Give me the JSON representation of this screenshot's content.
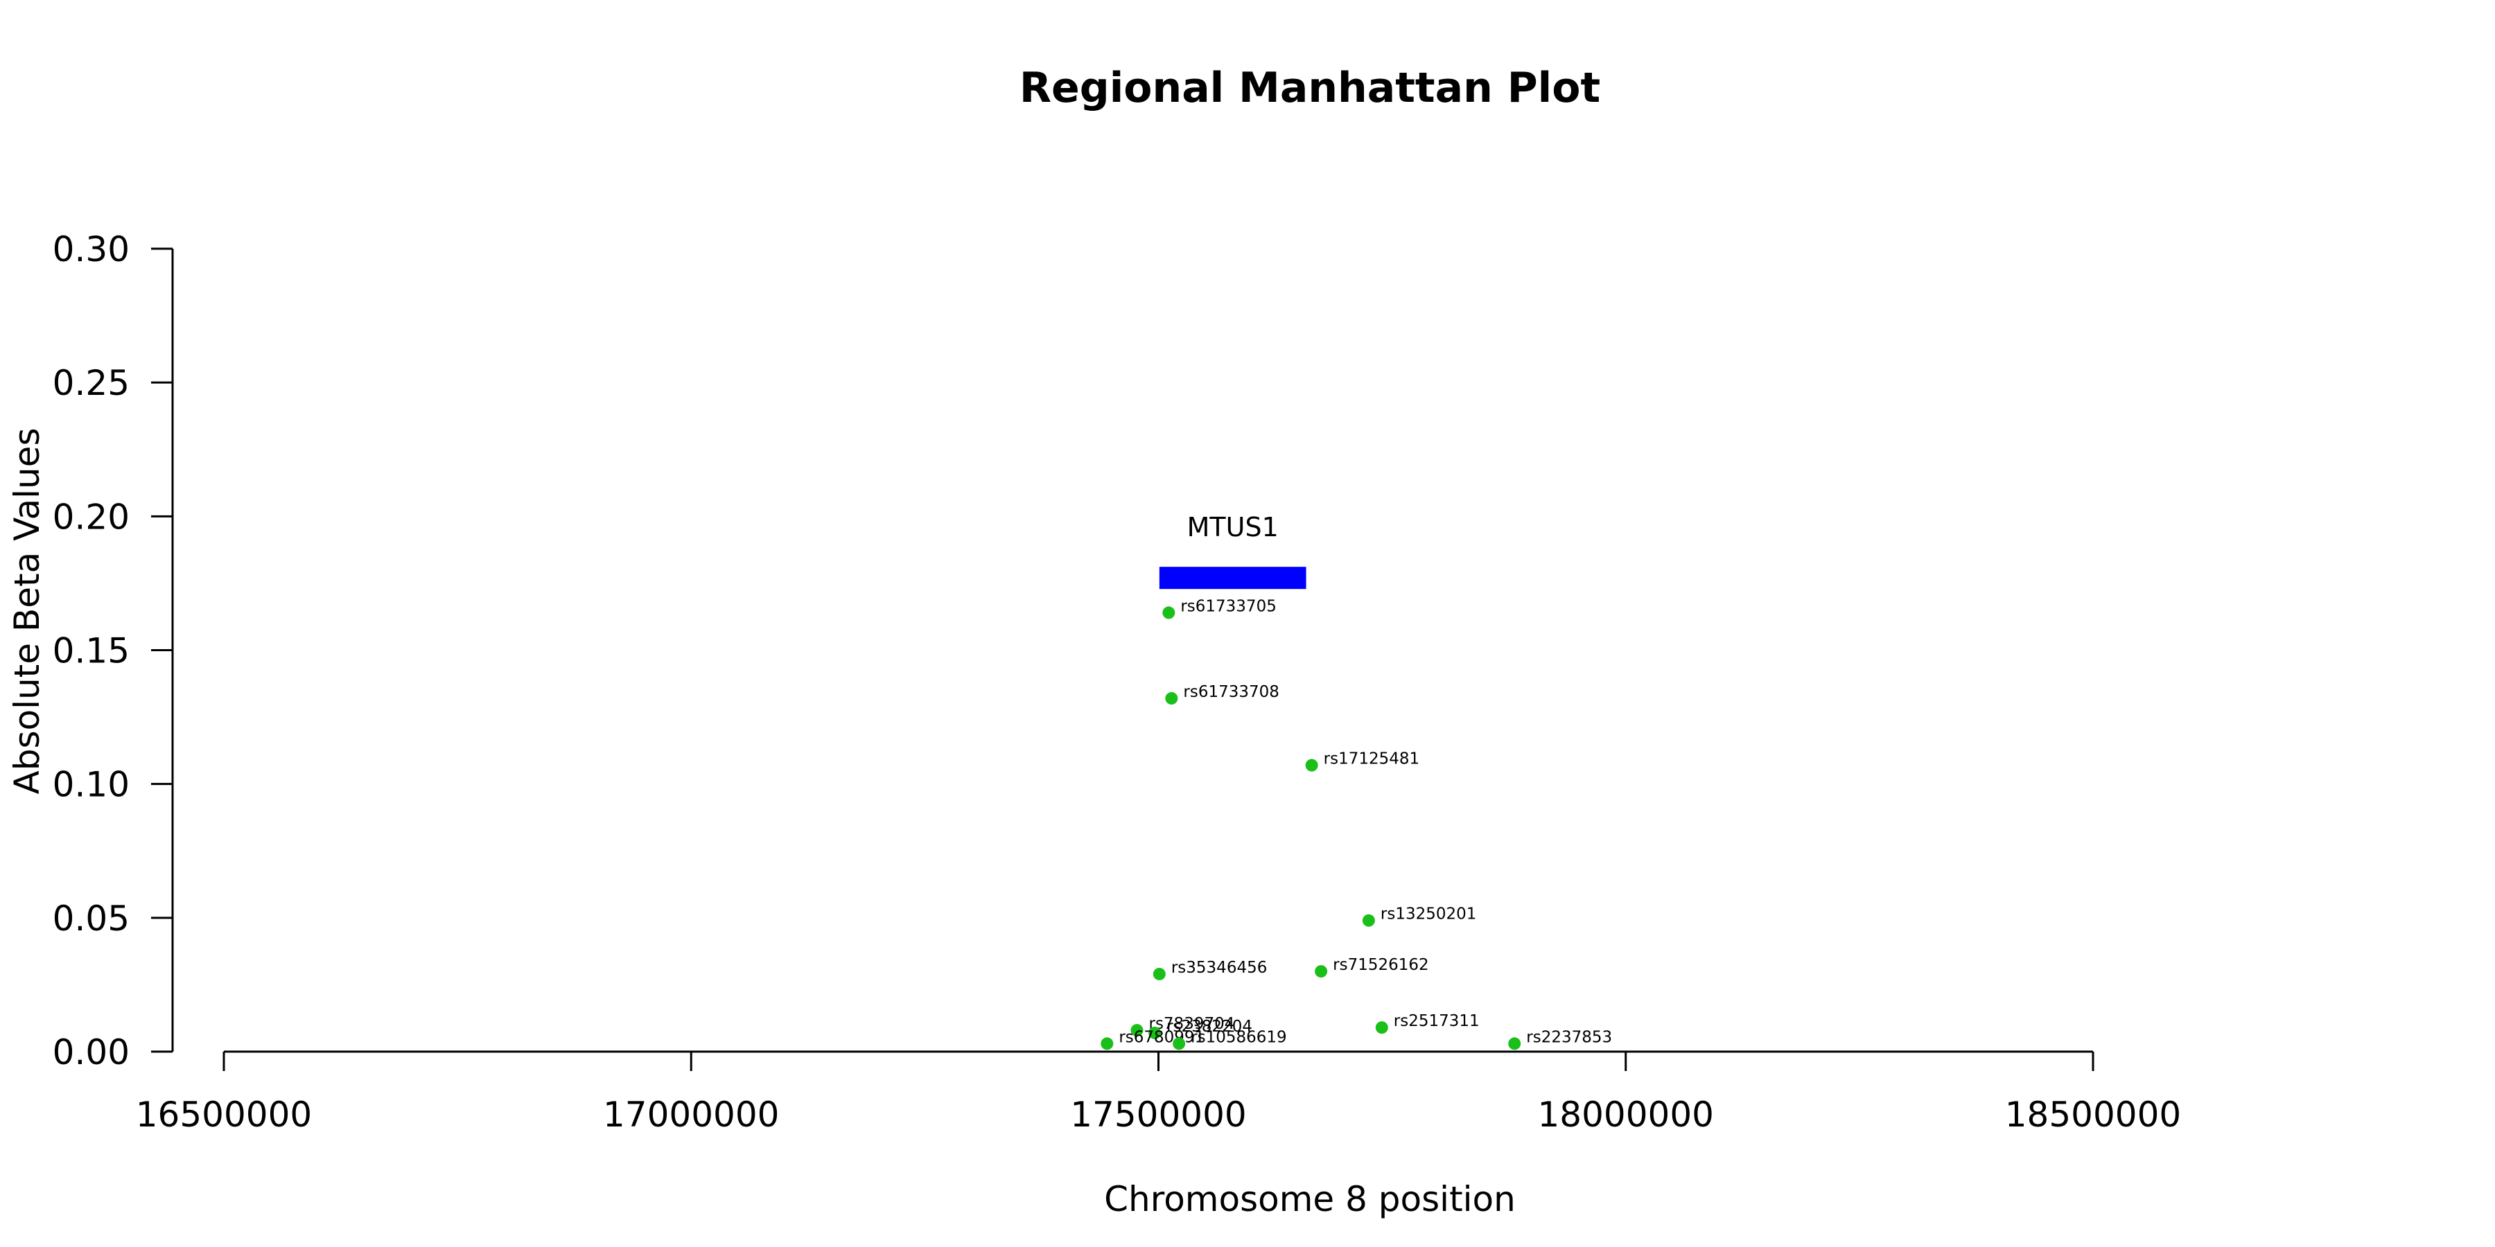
{
  "chart_data": {
    "type": "scatter",
    "title": "Regional Manhattan Plot",
    "xlabel": "Chromosome 8 position",
    "ylabel": "Absolute Beta Values",
    "xlim": [
      16500000,
      18500000
    ],
    "ylim": [
      0,
      0.3
    ],
    "x_ticks": [
      "16500000",
      "17000000",
      "17500000",
      "18000000",
      "18500000"
    ],
    "y_ticks": [
      "0.00",
      "0.05",
      "0.10",
      "0.15",
      "0.20",
      "0.25",
      "0.30"
    ],
    "point_color": "#1ABF1A",
    "grid": false,
    "gene": {
      "name": "MTUS1",
      "start": 17501000,
      "end": 17658000,
      "y": 0.177,
      "color": "#0000FF"
    },
    "points": [
      {
        "label": "rs61733705",
        "x": 17511000,
        "y": 0.164
      },
      {
        "label": "rs61733708",
        "x": 17514000,
        "y": 0.132
      },
      {
        "label": "rs17125481",
        "x": 17664000,
        "y": 0.107
      },
      {
        "label": "rs13250201",
        "x": 17725000,
        "y": 0.049
      },
      {
        "label": "rs35346456",
        "x": 17501000,
        "y": 0.029
      },
      {
        "label": "rs71526162",
        "x": 17674000,
        "y": 0.03
      },
      {
        "label": "rs2517311",
        "x": 17739000,
        "y": 0.009
      },
      {
        "label": "rs2237853",
        "x": 17881000,
        "y": 0.003
      },
      {
        "label": "rs7839704",
        "x": 17477000,
        "y": 0.008
      },
      {
        "label": "rs2382204",
        "x": 17496000,
        "y": 0.007
      },
      {
        "label": "rs6780991",
        "x": 17445000,
        "y": 0.003
      },
      {
        "label": "rs10586619",
        "x": 17522000,
        "y": 0.003
      }
    ]
  }
}
